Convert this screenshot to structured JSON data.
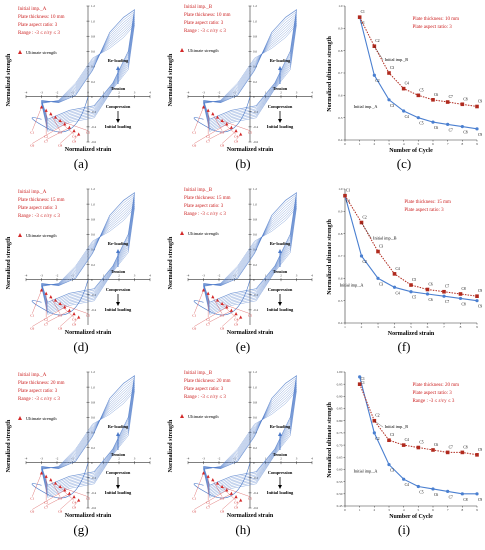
{
  "figure": {
    "panel_letters": [
      "(a)",
      "(b)",
      "(c)",
      "(d)",
      "(e)",
      "(f)",
      "(g)",
      "(h)",
      "(i)"
    ],
    "ylabel_hysteresis": "Normalized strength",
    "xlabel_hysteresis": "Normalized strain",
    "ylabel_cycle": "Normalized ultimate strength",
    "xlabel_cycle": "Number of Cycle",
    "xlabel_cycle_alt": "Normalized strain",
    "reloading_label": "Re-loading",
    "tension_label": "Tension",
    "compression_label": "Compression",
    "initial_loading_label": "Initial loading",
    "ultimate_label": "Ultimate strength",
    "colors": {
      "hysteresis": "#4a78c8",
      "imp_a": "#4a7fd0",
      "imp_b": "#b02a1e",
      "text_red": "#cc2222",
      "marker_red": "#d42a2a"
    }
  },
  "chart_data": [
    {
      "type": "line",
      "panel": "(a)",
      "info_lines": [
        "Initial imp._A",
        "Plate thickness: 10 mm",
        "Plate aspect ratio: 3",
        "Range : -3 ≤ ε/εy ≤ 3"
      ],
      "xticks": [
        "-4",
        "-3",
        "-2",
        "-1",
        "0",
        "1",
        "2",
        "3",
        "4"
      ],
      "yticks": [
        "1.2",
        "1.0",
        "0.8",
        "0.6",
        "0.4",
        "0.2",
        "0",
        "-0.2",
        "-0.4",
        "-0.6"
      ],
      "cycle_labels": [
        "C1",
        "C2",
        "C3",
        "C4",
        "C5",
        "C6",
        "C7",
        "C8",
        "C9"
      ],
      "xlim": [
        -4,
        4
      ],
      "ylim": [
        -0.6,
        1.2
      ]
    },
    {
      "type": "line",
      "panel": "(b)",
      "info_lines": [
        "Initial imp._B",
        "Plate thickness: 10 mm",
        "Plate aspect ratio: 3",
        "Range : -3 ≤ ε/εy ≤ 3"
      ],
      "xticks": [
        "-4",
        "-3",
        "-2",
        "-1",
        "0",
        "1",
        "2",
        "3",
        "4"
      ],
      "yticks": [
        "1.2",
        "1.0",
        "0.8",
        "0.6",
        "0.4",
        "0.2",
        "0",
        "-0.2",
        "-0.4",
        "-0.6"
      ],
      "cycle_labels": [
        "C1",
        "C2",
        "C3",
        "C4",
        "C5",
        "C6",
        "C7",
        "C8",
        "C9"
      ],
      "xlim": [
        -4,
        4
      ],
      "ylim": [
        -0.6,
        1.2
      ]
    },
    {
      "type": "line",
      "panel": "(c)",
      "info_lines": [
        "Plate thickness: 10 mm",
        "Plate aspect ratio: 3"
      ],
      "series_labels": [
        "Initial imp._B",
        "Initial imp._A"
      ],
      "x": [
        1,
        2,
        3,
        4,
        5,
        6,
        7,
        8,
        9
      ],
      "series": [
        {
          "name": "Initial imp._B",
          "values": [
            0.95,
            0.82,
            0.7,
            0.63,
            0.6,
            0.58,
            0.57,
            0.56,
            0.55
          ]
        },
        {
          "name": "Initial imp._A",
          "values": [
            0.95,
            0.69,
            0.58,
            0.53,
            0.5,
            0.48,
            0.47,
            0.46,
            0.45
          ]
        }
      ],
      "point_labels": [
        "C1",
        "C2",
        "C3",
        "C4",
        "C5",
        "C6",
        "C7",
        "C8",
        "C9"
      ],
      "xticks": [
        "0",
        "1",
        "2",
        "3",
        "4",
        "5",
        "6",
        "7",
        "8",
        "9"
      ],
      "yticks": [
        "1.0",
        "0.9",
        "0.8",
        "0.7",
        "0.6",
        "0.5",
        "0.4"
      ],
      "xlim": [
        0,
        9
      ],
      "ylim": [
        0.4,
        1.0
      ]
    },
    {
      "type": "line",
      "panel": "(d)",
      "info_lines": [
        "Initial imp._A",
        "Plate thickness: 15 mm",
        "Plate aspect ratio: 3",
        "Range : -3 ≤ ε/εy ≤ 3"
      ],
      "xticks": [
        "-4",
        "-3",
        "-2",
        "-1",
        "0",
        "1",
        "2",
        "3",
        "4"
      ],
      "yticks": [
        "1.2",
        "1.0",
        "0.8",
        "0.6",
        "0.4",
        "0.2",
        "0",
        "-0.2",
        "-0.4"
      ],
      "cycle_labels": [
        "C1",
        "C2",
        "C3",
        "C4",
        "C5",
        "C6",
        "C7",
        "C8",
        "C9"
      ],
      "xlim": [
        -4,
        4
      ],
      "ylim": [
        -0.6,
        1.2
      ]
    },
    {
      "type": "line",
      "panel": "(e)",
      "info_lines": [
        "Initial imp._B",
        "Plate thickness: 15 mm",
        "Plate aspect ratio: 3",
        "Range : -3 ≤ ε/εy ≤ 3"
      ],
      "xticks": [
        "-4",
        "-3",
        "-2",
        "-1",
        "0",
        "1",
        "2",
        "3",
        "4"
      ],
      "yticks": [
        "1.2",
        "1.0",
        "0.8",
        "0.6",
        "0.4",
        "0.2",
        "0",
        "-0.2",
        "-0.4"
      ],
      "cycle_labels": [
        "C1",
        "C2",
        "C3",
        "C4",
        "C5",
        "C6",
        "C7",
        "C8",
        "C9"
      ],
      "xlim": [
        -4,
        4
      ],
      "ylim": [
        -0.6,
        1.2
      ]
    },
    {
      "type": "line",
      "panel": "(f)",
      "info_lines": [
        "Plate thickness: 15 mm",
        "Plate aspect ratio: 3"
      ],
      "series_labels": [
        "Initial imp._B",
        "Initial imp._A"
      ],
      "x": [
        1,
        2,
        3,
        4,
        5,
        6,
        7,
        8,
        9
      ],
      "series": [
        {
          "name": "Initial imp._B",
          "values": [
            0.97,
            0.85,
            0.72,
            0.62,
            0.57,
            0.55,
            0.54,
            0.53,
            0.52
          ]
        },
        {
          "name": "Initial imp._A",
          "values": [
            0.97,
            0.7,
            0.6,
            0.56,
            0.54,
            0.53,
            0.52,
            0.51,
            0.5
          ]
        }
      ],
      "point_labels": [
        "C1",
        "C2",
        "C3",
        "C4",
        "C5",
        "C6",
        "C7",
        "C8",
        "C9"
      ],
      "xticks": [
        "1",
        "2",
        "3",
        "4",
        "5",
        "6",
        "7",
        "8",
        "9"
      ],
      "yticks": [
        "1.0",
        "0.9",
        "0.8",
        "0.7",
        "0.6",
        "0.5",
        "0.4"
      ],
      "xlim": [
        1,
        9
      ],
      "ylim": [
        0.4,
        1.0
      ]
    },
    {
      "type": "line",
      "panel": "(g)",
      "info_lines": [
        "Initial imp._A",
        "Plate thickness: 20 mm",
        "Plate aspect ratio: 3",
        "Range : -3 ≤ ε/εy ≤ 3"
      ],
      "xticks": [
        "-4",
        "-3",
        "-2",
        "-1",
        "0",
        "1",
        "2",
        "3",
        "4"
      ],
      "yticks": [
        "1.2",
        "1.0",
        "0.8",
        "0.6",
        "0.4",
        "0.2",
        "0",
        "-0.2",
        "-0.4",
        "-0.6"
      ],
      "cycle_labels": [
        "C1",
        "C2",
        "C3",
        "C4",
        "C5",
        "C6",
        "C7",
        "C8",
        "C9"
      ],
      "xlim": [
        -4,
        4
      ],
      "ylim": [
        -0.6,
        1.2
      ]
    },
    {
      "type": "line",
      "panel": "(h)",
      "info_lines": [
        "Initial imp._B",
        "Plate thickness: 20 mm",
        "Plate aspect ratio: 3",
        "Range : -3 ≤ ε/εy ≤ 3"
      ],
      "xticks": [
        "-4",
        "-3",
        "-2",
        "-1",
        "0",
        "1",
        "2",
        "3",
        "4"
      ],
      "yticks": [
        "1.2",
        "1.0",
        "0.8",
        "0.6",
        "0.4",
        "0.2",
        "0",
        "-0.2",
        "-0.4",
        "-0.6"
      ],
      "cycle_labels": [
        "C1",
        "C2",
        "C3",
        "C4",
        "C5",
        "C6",
        "C7",
        "C8",
        "C9"
      ],
      "xlim": [
        -4,
        4
      ],
      "ylim": [
        -0.6,
        1.2
      ]
    },
    {
      "type": "line",
      "panel": "(i)",
      "info_lines": [
        "Plate thickness: 20 mm",
        "Plate aspect ratio: 3",
        "Range : -3 ≤ ε/εy ≤ 3"
      ],
      "series_labels": [
        "Initial imp._B",
        "Initial imp._A"
      ],
      "x": [
        1,
        2,
        3,
        4,
        5,
        6,
        7,
        8,
        9
      ],
      "series": [
        {
          "name": "Initial imp._B",
          "values": [
            0.95,
            0.8,
            0.72,
            0.7,
            0.69,
            0.68,
            0.67,
            0.67,
            0.66
          ]
        },
        {
          "name": "Initial imp._A",
          "values": [
            0.98,
            0.75,
            0.62,
            0.56,
            0.53,
            0.52,
            0.51,
            0.5,
            0.5
          ]
        }
      ],
      "point_labels": [
        "C1",
        "C2",
        "C3",
        "C4",
        "C5",
        "C6",
        "C7",
        "C8",
        "C9"
      ],
      "xticks": [
        "0",
        "1",
        "2",
        "3",
        "4",
        "5",
        "6",
        "7",
        "8",
        "9"
      ],
      "yticks": [
        "1.00",
        "0.95",
        "0.90",
        "0.85",
        "0.80",
        "0.75",
        "0.70",
        "0.65",
        "0.60",
        "0.55",
        "0.50",
        "0.45"
      ],
      "xlim": [
        0,
        9
      ],
      "ylim": [
        0.45,
        1.0
      ]
    }
  ]
}
